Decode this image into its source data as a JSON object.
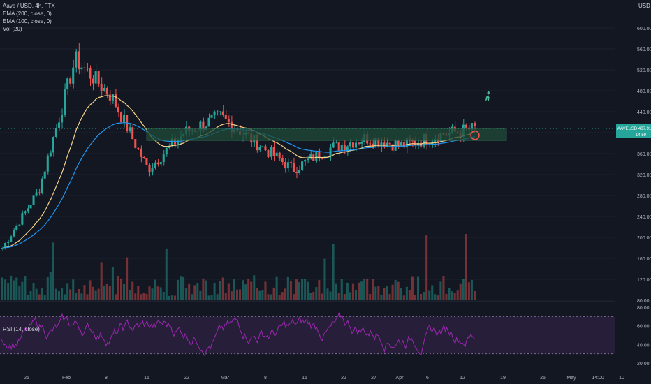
{
  "title": "Aave / USD, 4h, FTX",
  "indicators": [
    "EMA (200, close, 0)",
    "EMA (100, close, 0)",
    "Vol (20)"
  ],
  "rsi_label": "RSI (14, close)",
  "currency": "USD",
  "price_ticks": [
    "600.00",
    "560.00",
    "520.00",
    "480.00",
    "440.00",
    "400.00",
    "360.00",
    "320.00",
    "280.00",
    "240.00",
    "200.00",
    "160.00",
    "120.00",
    "80.00"
  ],
  "rsi_ticks": [
    "80.00",
    "60.00",
    "40.00",
    "20.00"
  ],
  "x_labels": [
    "25",
    "Feb",
    "8",
    "15",
    "22",
    "Mar",
    "8",
    "15",
    "22",
    "27",
    "Apr",
    "6",
    "12",
    "19",
    "26",
    "May",
    "14:00",
    "10"
  ],
  "last_price": {
    "symbol": "AAVEUSD",
    "price": "407.91",
    "countdown": "14:59"
  },
  "colors": {
    "up": "#26a69a",
    "down": "#ef5350",
    "ema200": "#2196f3",
    "ema100": "#f6d58a",
    "rsi": "#9c27b0",
    "rsi_band": "#2a1f3d",
    "zone": "#1e4a38",
    "rocket": "#4fb89a"
  },
  "annotations": {
    "zone": [
      385,
      408
    ],
    "rocket_icon": "rocket-icon",
    "circle_marker": "red-circle"
  },
  "chart_data": {
    "type": "candlestick",
    "symbol": "AAVE/USD",
    "interval": "4h",
    "ylim_price": [
      80,
      620
    ],
    "ylim_rsi": [
      20,
      80
    ],
    "rsi_levels": [
      70,
      30
    ],
    "key_points": [
      {
        "x": "start",
        "price": 180
      },
      {
        "x": "Feb",
        "price": 290
      },
      {
        "x": "8",
        "price": 540
      },
      {
        "x": "15",
        "price": 470
      },
      {
        "x": "22",
        "price": 330
      },
      {
        "x": "Mar",
        "price": 400
      },
      {
        "x": "8",
        "price": 430
      },
      {
        "x": "15",
        "price": 380
      },
      {
        "x": "22",
        "price": 330
      },
      {
        "x": "27",
        "price": 370
      },
      {
        "x": "Apr",
        "price": 390
      },
      {
        "x": "6",
        "price": 375
      },
      {
        "x": "12",
        "price": 395
      },
      {
        "x": "last",
        "price": 408
      }
    ]
  }
}
